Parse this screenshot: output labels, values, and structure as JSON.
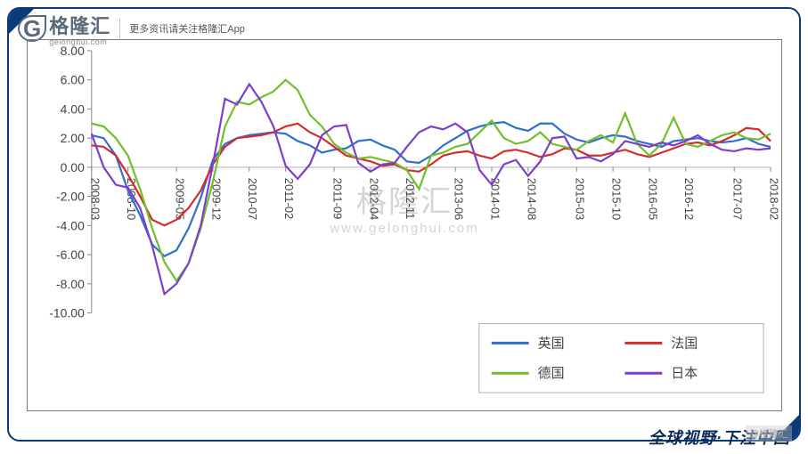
{
  "header": {
    "logo_name": "格隆汇",
    "logo_sub": "gelonghui.com",
    "note": "更多资讯请关注格隆汇App"
  },
  "footer": {
    "slogan": "全球视野·下注中国",
    "corner_watermark": "@格隆汇"
  },
  "watermark": {
    "main": "格隆汇",
    "url": "www.gelonghui.com"
  },
  "chart": {
    "type": "line",
    "background_color": "#ffffff",
    "border_color": "#7c7c7c",
    "y_axis": {
      "min": -10.0,
      "max": 8.0,
      "step": 2.0,
      "ticks": [
        8.0,
        6.0,
        4.0,
        2.0,
        0.0,
        -2.0,
        -4.0,
        -6.0,
        -8.0,
        -10.0
      ],
      "tick_format": "0.00",
      "label_fontsize": 14,
      "label_color": "#444444"
    },
    "x_axis": {
      "labels": [
        "2008-03",
        "2008-10",
        "2009-05",
        "2009-12",
        "2010-07",
        "2011-02",
        "2011-09",
        "2012-04",
        "2012-11",
        "2013-06",
        "2014-01",
        "2014-08",
        "2015-03",
        "2015-10",
        "2016-05",
        "2016-12",
        "2017-07",
        "2018-02"
      ],
      "label_fontsize": 13,
      "label_color": "#444444",
      "rotation": 90
    },
    "gridline_at_zero_color": "#b0b0b0",
    "series": [
      {
        "name": "英国",
        "legend_label": "英国",
        "color": "#2e6fd1",
        "line_width": 2.2,
        "values": [
          2.2,
          2.0,
          0.8,
          -1.6,
          -3.3,
          -5.3,
          -6.1,
          -5.7,
          -4.2,
          -2.1,
          0.5,
          1.6,
          2.0,
          2.2,
          2.3,
          2.4,
          2.3,
          1.8,
          1.5,
          1.0,
          1.2,
          1.3,
          1.8,
          1.9,
          1.5,
          1.2,
          0.4,
          0.3,
          0.8,
          1.5,
          2.0,
          2.5,
          2.8,
          3.0,
          3.1,
          2.7,
          2.5,
          3.0,
          3.0,
          2.3,
          1.9,
          1.7,
          2.0,
          2.2,
          2.1,
          1.8,
          1.6,
          1.4,
          1.8,
          1.9,
          2.0,
          1.8,
          1.7,
          1.8,
          2.0,
          1.6,
          1.4
        ]
      },
      {
        "name": "法国",
        "legend_label": "法国",
        "color": "#d42c2c",
        "line_width": 2.2,
        "values": [
          1.5,
          1.4,
          0.8,
          -0.5,
          -2.0,
          -3.6,
          -4.0,
          -3.6,
          -2.8,
          -1.6,
          0.2,
          1.4,
          2.0,
          2.1,
          2.2,
          2.4,
          2.8,
          3.0,
          2.4,
          2.0,
          1.4,
          0.8,
          0.6,
          0.4,
          0.1,
          0.2,
          -0.2,
          -0.3,
          0.2,
          0.8,
          1.0,
          1.1,
          0.8,
          0.6,
          1.1,
          1.2,
          1.0,
          0.7,
          0.9,
          1.3,
          1.2,
          0.8,
          0.8,
          1.0,
          1.2,
          0.9,
          0.7,
          1.0,
          1.3,
          1.6,
          1.7,
          1.5,
          1.8,
          2.2,
          2.7,
          2.6,
          1.8
        ]
      },
      {
        "name": "德国",
        "legend_label": "德国",
        "color": "#6fc02c",
        "line_width": 2.2,
        "values": [
          3.0,
          2.8,
          2.0,
          0.8,
          -1.5,
          -4.2,
          -6.5,
          -7.8,
          -6.6,
          -4.2,
          -1.0,
          2.8,
          4.5,
          4.3,
          4.8,
          5.2,
          6.0,
          5.3,
          3.6,
          2.8,
          1.6,
          1.0,
          0.6,
          0.7,
          0.5,
          0.3,
          -0.2,
          -1.5,
          0.8,
          1.0,
          1.4,
          1.6,
          2.4,
          3.2,
          2.0,
          1.6,
          1.8,
          2.4,
          1.6,
          1.4,
          1.2,
          1.8,
          2.2,
          1.7,
          3.7,
          1.6,
          0.8,
          1.6,
          3.4,
          1.6,
          1.4,
          1.8,
          2.2,
          2.4,
          2.0,
          1.9,
          2.3
        ]
      },
      {
        "name": "日本",
        "legend_label": "日本",
        "color": "#7c3fc9",
        "line_width": 2.2,
        "values": [
          2.3,
          0.0,
          -1.2,
          -1.4,
          -2.8,
          -5.4,
          -8.7,
          -8.0,
          -6.6,
          -4.0,
          0.2,
          4.7,
          4.3,
          5.7,
          4.5,
          2.8,
          0.1,
          -0.8,
          0.2,
          2.2,
          2.8,
          2.9,
          0.3,
          -0.3,
          0.2,
          0.3,
          1.4,
          2.4,
          2.8,
          2.6,
          3.0,
          2.4,
          -0.2,
          -1.2,
          0.2,
          0.5,
          -0.6,
          0.4,
          2.0,
          2.1,
          0.6,
          0.7,
          0.4,
          0.9,
          1.8,
          1.6,
          1.4,
          1.7,
          1.5,
          1.8,
          2.2,
          1.6,
          1.2,
          1.1,
          1.3,
          1.2,
          1.3
        ]
      }
    ],
    "series_len": 57,
    "legend": {
      "position": "bottom-right",
      "box_stroke": "#b0b0b0",
      "box_fill": "#ffffff",
      "items": [
        {
          "label": "英国",
          "color": "#2e6fd1"
        },
        {
          "label": "法国",
          "color": "#d42c2c"
        },
        {
          "label": "德国",
          "color": "#6fc02c"
        },
        {
          "label": "日本",
          "color": "#7c3fc9"
        }
      ],
      "fontsize": 15
    }
  }
}
